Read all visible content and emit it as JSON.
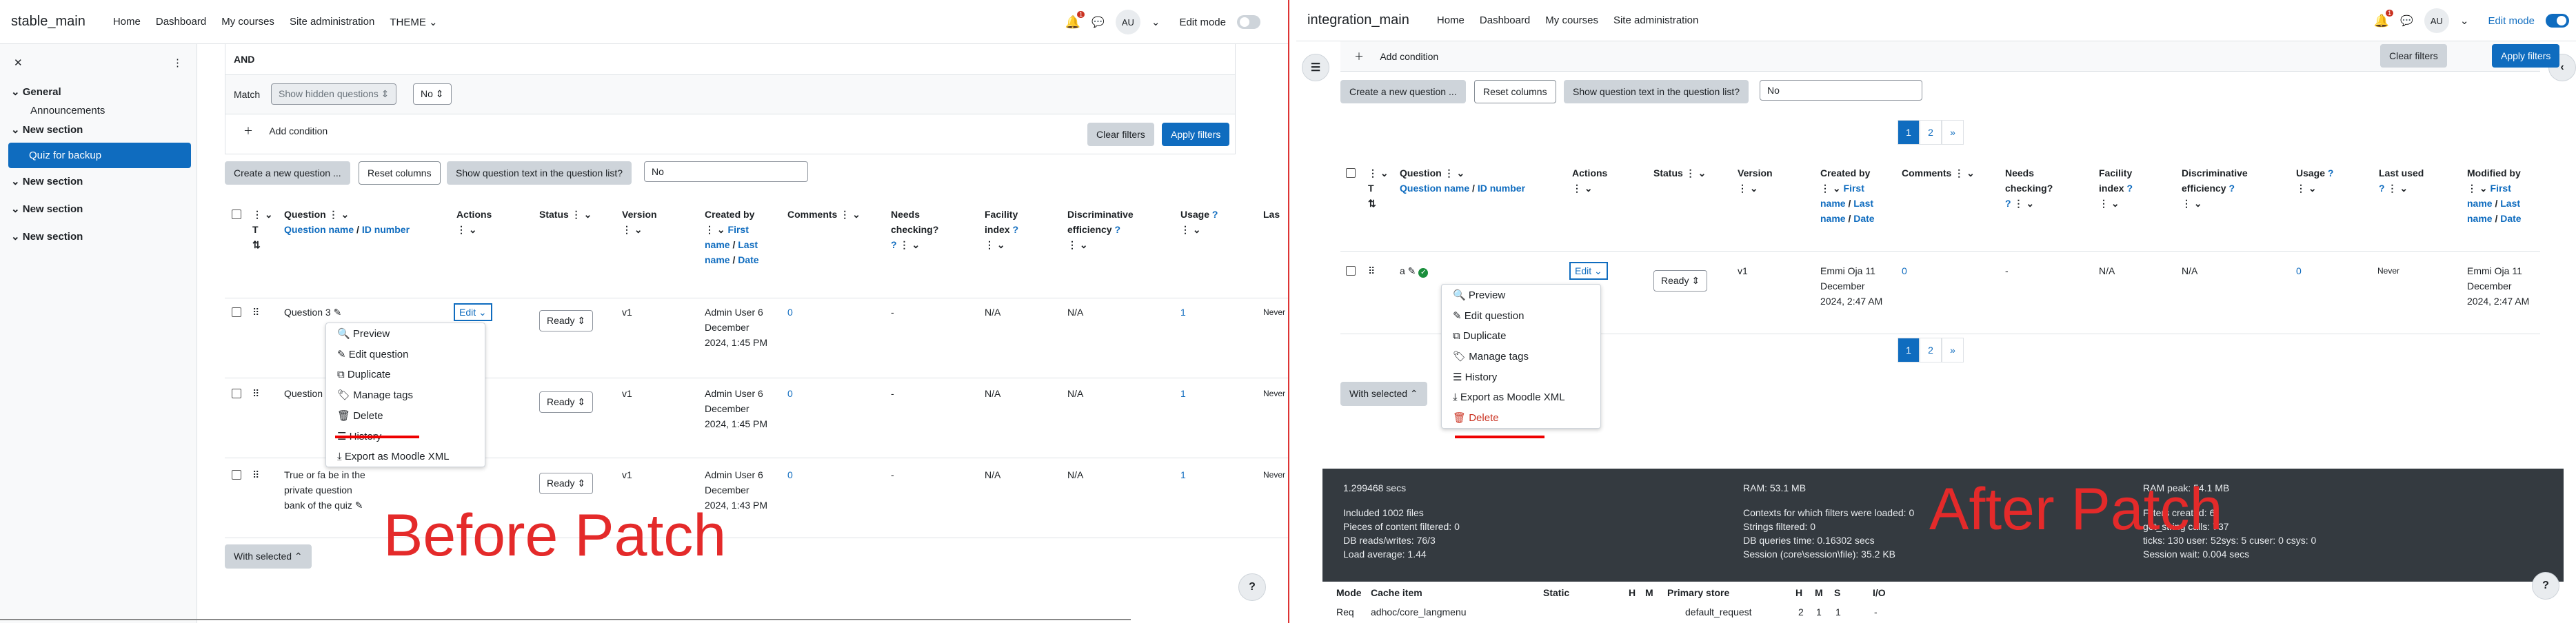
{
  "left": {
    "brand": "stable_main",
    "nav": [
      "Home",
      "Dashboard",
      "My courses",
      "Site administration",
      "THEME ⌄"
    ],
    "notif_count": "1",
    "avatar": "AU",
    "edit_mode": "Edit mode",
    "drawer": {
      "general": "General",
      "announcements": "Announcements",
      "sections": [
        "New section",
        "New section",
        "New section",
        "New section"
      ],
      "active": "Quiz for backup"
    },
    "filter": {
      "and": "AND",
      "match": "Match",
      "hidden": "Show hidden questions ⇕",
      "no": "No ⇕",
      "add_condition": "Add condition",
      "clear": "Clear filters",
      "apply": "Apply filters"
    },
    "toolbar": {
      "create": "Create a new question ...",
      "reset": "Reset columns",
      "showtext": "Show question text in the question list?",
      "no": "No"
    },
    "headers": {
      "question": "Question",
      "qname": "Question name",
      "idnum": "ID number",
      "t": "T",
      "actions": "Actions",
      "status": "Status",
      "version": "Version",
      "createdby": "Created by",
      "firstname": "First name",
      "lastname": "Last name",
      "date": "Date",
      "comments": "Comments",
      "needs": "Needs checking?",
      "facility": "Facility index",
      "disc": "Discriminative efficiency",
      "usage": "Usage",
      "last": "Las"
    },
    "rows": [
      {
        "name": "Question 3",
        "edit": "Edit ⌄",
        "status": "Ready ⇕",
        "version": "v1",
        "created": "Admin User 6 December 2024, 1:45 PM",
        "comments": "0",
        "needs": "-",
        "facility": "N/A",
        "disc": "N/A",
        "usage": "1",
        "last": "Never"
      },
      {
        "name": "Question",
        "status": "Ready ⇕",
        "version": "v1",
        "created": "Admin User 6 December 2024, 1:45 PM",
        "comments": "0",
        "needs": "-",
        "facility": "N/A",
        "disc": "N/A",
        "usage": "1",
        "last": "Never"
      },
      {
        "name": "True or fa be in the private question bank of the quiz",
        "status": "Ready ⇕",
        "version": "v1",
        "created": "Admin User 6 December 2024, 1:43 PM",
        "comments": "0",
        "needs": "-",
        "facility": "N/A",
        "disc": "N/A",
        "usage": "1",
        "last": "Never"
      }
    ],
    "menu": [
      "Preview",
      "Edit question",
      "Duplicate",
      "Manage tags",
      "Delete",
      "History",
      "Export as Moodle XML"
    ],
    "with_selected": "With selected ⌃",
    "watermark": "Before Patch"
  },
  "right": {
    "brand": "integration_main",
    "nav": [
      "Home",
      "Dashboard",
      "My courses",
      "Site administration"
    ],
    "notif_count": "1",
    "avatar": "AU",
    "edit_mode": "Edit mode",
    "filter": {
      "add_condition": "Add condition",
      "clear": "Clear filters",
      "apply": "Apply filters"
    },
    "toolbar": {
      "create": "Create a new question ...",
      "reset": "Reset columns",
      "showtext": "Show question text in the question list?",
      "no": "No"
    },
    "pages": [
      "1",
      "2",
      "»"
    ],
    "headers": {
      "question": "Question",
      "qname": "Question name",
      "idnum": "ID number",
      "t": "T",
      "actions": "Actions",
      "status": "Status",
      "version": "Version",
      "createdby": "Created by",
      "firstname": "First name",
      "lastname": "Last name",
      "date": "Date",
      "comments": "Comments",
      "needs": "Needs checking?",
      "facility": "Facility index",
      "disc": "Discriminative efficiency",
      "usage": "Usage",
      "lastused": "Last used",
      "modifiedby": "Modified by"
    },
    "row": {
      "name": "a",
      "edit": "Edit ⌄",
      "status": "Ready ⇕",
      "version": "v1",
      "created": "Emmi Oja 11 December 2024, 2:47 AM",
      "comments": "0",
      "needs": "-",
      "facility": "N/A",
      "disc": "N/A",
      "usage": "0",
      "last": "Never",
      "modified": "Emmi Oja 11 December 2024, 2:47 AM"
    },
    "menu": [
      "Preview",
      "Edit question",
      "Duplicate",
      "Manage tags",
      "History",
      "Export as Moodle XML",
      "Delete"
    ],
    "with_selected": "With selected ⌃",
    "perf": {
      "secs": "1.299468 secs",
      "ram": "RAM: 53.1 MB",
      "ramp": "RAM peak: 54.1 MB",
      "files": "Included 1002 files",
      "ctx": "Contexts for which filters were loaded: 0",
      "fc": "Filters created: 6",
      "pcf": "Pieces of content filtered: 0",
      "sf": "Strings filtered: 0",
      "getstr": "get_string calls: 737",
      "db": "DB reads/writes: 76/3",
      "dbq": "DB queries time: 0.16302 secs",
      "ticks": "ticks: 130 user: 52sys: 5 cuser: 0 csys: 0",
      "load": "Load average: 1.44",
      "sess": "Session (core\\session\\file): 35.2 KB",
      "sw": "Session wait: 0.004 secs",
      "cols": [
        "Mode",
        "Cache item",
        "Static",
        "H",
        "M",
        "Primary store",
        "H",
        "M",
        "S",
        "I/O"
      ],
      "row": [
        "Req",
        "adhoc/core_langmenu",
        "",
        "",
        "",
        "default_request",
        "2",
        "1",
        "1",
        "-"
      ]
    },
    "watermark": "After Patch"
  }
}
